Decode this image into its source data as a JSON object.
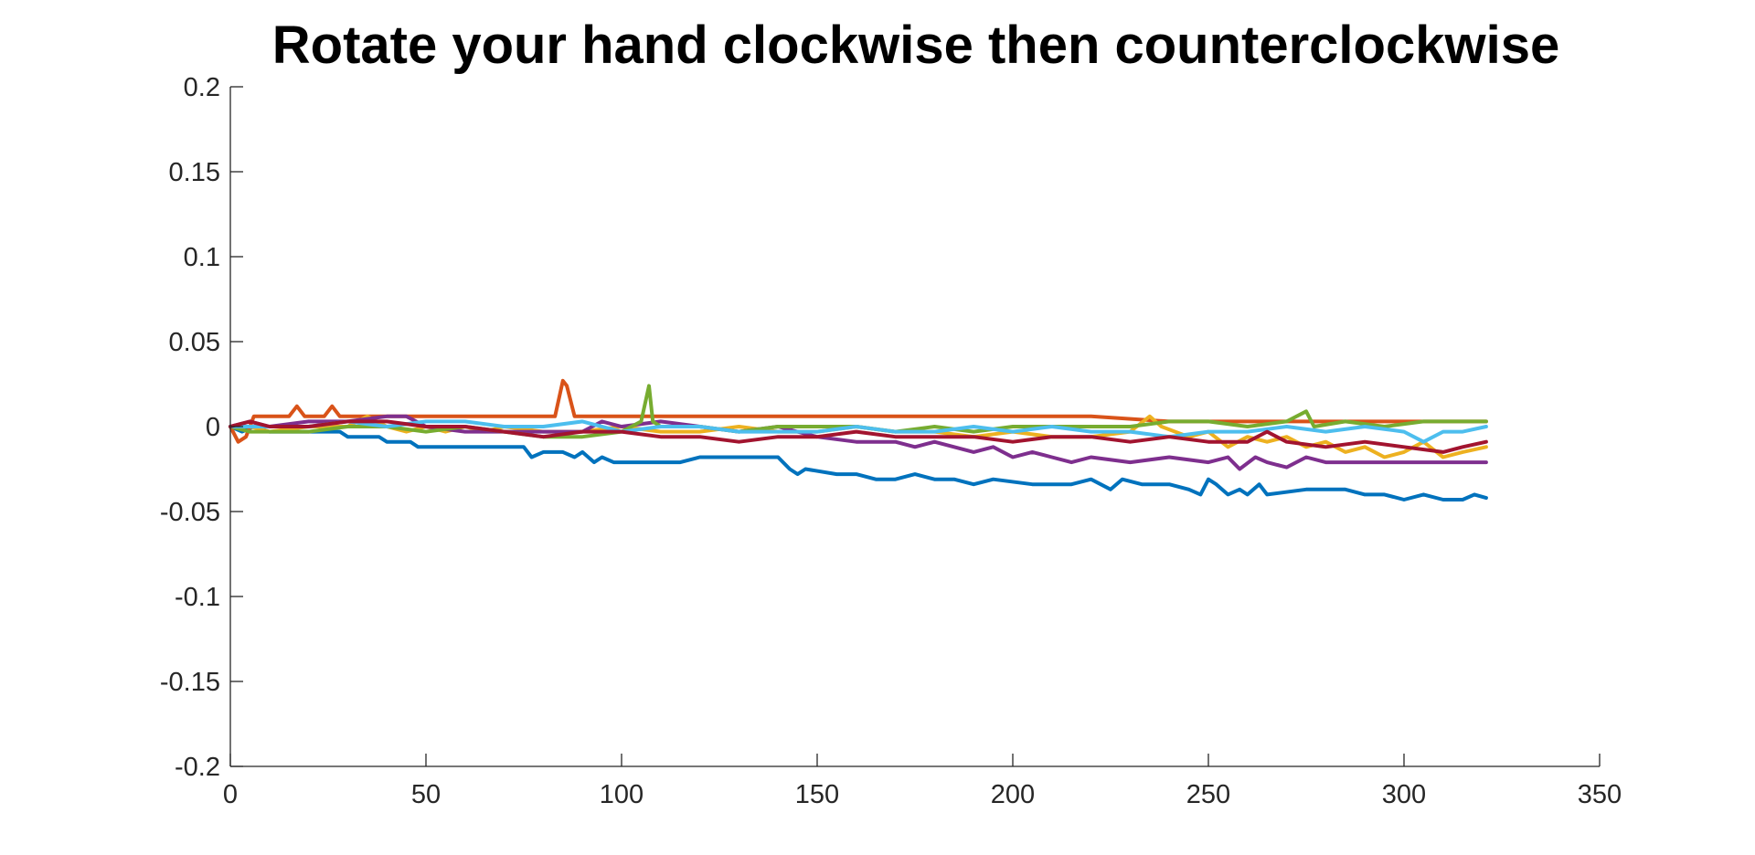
{
  "chart_data": {
    "type": "line",
    "title": "Rotate your hand clockwise then counterclockwise",
    "xlabel": "",
    "ylabel": "",
    "xlim": [
      0,
      350
    ],
    "ylim": [
      -0.2,
      0.2
    ],
    "x_ticks": [
      0,
      50,
      100,
      150,
      200,
      250,
      300,
      350
    ],
    "x_tick_labels": [
      "0",
      "50",
      "100",
      "150",
      "200",
      "250",
      "300",
      "350"
    ],
    "y_ticks": [
      0.2,
      0.15,
      0.1,
      0.05,
      0,
      -0.05,
      -0.1,
      -0.15,
      -0.2
    ],
    "y_tick_labels": [
      "0.2",
      "0.15",
      "0.1",
      "0.05",
      "0",
      "-0.05",
      "-0.1",
      "-0.15",
      "-0.2"
    ],
    "grid": false,
    "legend": "none",
    "series": [
      {
        "color": "#0072BD",
        "points": [
          [
            0,
            0
          ],
          [
            3,
            -0.003
          ],
          [
            6,
            0
          ],
          [
            10,
            -0.003
          ],
          [
            20,
            -0.003
          ],
          [
            28,
            -0.003
          ],
          [
            30,
            -0.006
          ],
          [
            38,
            -0.006
          ],
          [
            40,
            -0.009
          ],
          [
            46,
            -0.009
          ],
          [
            48,
            -0.012
          ],
          [
            60,
            -0.012
          ],
          [
            70,
            -0.012
          ],
          [
            75,
            -0.012
          ],
          [
            77,
            -0.018
          ],
          [
            80,
            -0.015
          ],
          [
            85,
            -0.015
          ],
          [
            88,
            -0.018
          ],
          [
            90,
            -0.015
          ],
          [
            93,
            -0.021
          ],
          [
            95,
            -0.018
          ],
          [
            98,
            -0.021
          ],
          [
            108,
            -0.021
          ],
          [
            115,
            -0.021
          ],
          [
            120,
            -0.018
          ],
          [
            125,
            -0.018
          ],
          [
            130,
            -0.018
          ],
          [
            140,
            -0.018
          ],
          [
            143,
            -0.025
          ],
          [
            145,
            -0.028
          ],
          [
            147,
            -0.025
          ],
          [
            155,
            -0.028
          ],
          [
            160,
            -0.028
          ],
          [
            165,
            -0.031
          ],
          [
            170,
            -0.031
          ],
          [
            175,
            -0.028
          ],
          [
            180,
            -0.031
          ],
          [
            185,
            -0.031
          ],
          [
            190,
            -0.034
          ],
          [
            195,
            -0.031
          ],
          [
            205,
            -0.034
          ],
          [
            215,
            -0.034
          ],
          [
            220,
            -0.031
          ],
          [
            225,
            -0.037
          ],
          [
            228,
            -0.031
          ],
          [
            233,
            -0.034
          ],
          [
            240,
            -0.034
          ],
          [
            245,
            -0.037
          ],
          [
            248,
            -0.04
          ],
          [
            250,
            -0.031
          ],
          [
            252,
            -0.034
          ],
          [
            255,
            -0.04
          ],
          [
            258,
            -0.037
          ],
          [
            260,
            -0.04
          ],
          [
            263,
            -0.034
          ],
          [
            265,
            -0.04
          ],
          [
            275,
            -0.037
          ],
          [
            285,
            -0.037
          ],
          [
            290,
            -0.04
          ],
          [
            295,
            -0.04
          ],
          [
            300,
            -0.043
          ],
          [
            305,
            -0.04
          ],
          [
            310,
            -0.043
          ],
          [
            315,
            -0.043
          ],
          [
            318,
            -0.04
          ],
          [
            321,
            -0.042
          ]
        ]
      },
      {
        "color": "#D95319",
        "points": [
          [
            0,
            0
          ],
          [
            2,
            -0.009
          ],
          [
            4,
            -0.006
          ],
          [
            6,
            0.006
          ],
          [
            10,
            0.006
          ],
          [
            15,
            0.006
          ],
          [
            17,
            0.012
          ],
          [
            19,
            0.006
          ],
          [
            24,
            0.006
          ],
          [
            26,
            0.012
          ],
          [
            28,
            0.006
          ],
          [
            40,
            0.006
          ],
          [
            60,
            0.006
          ],
          [
            80,
            0.006
          ],
          [
            83,
            0.006
          ],
          [
            85,
            0.027
          ],
          [
            86,
            0.024
          ],
          [
            88,
            0.006
          ],
          [
            100,
            0.006
          ],
          [
            120,
            0.006
          ],
          [
            140,
            0.006
          ],
          [
            160,
            0.006
          ],
          [
            180,
            0.006
          ],
          [
            200,
            0.006
          ],
          [
            220,
            0.006
          ],
          [
            240,
            0.003
          ],
          [
            260,
            0.003
          ],
          [
            280,
            0.003
          ],
          [
            300,
            0.003
          ],
          [
            321,
            0.003
          ]
        ]
      },
      {
        "color": "#EDB120",
        "points": [
          [
            0,
            0
          ],
          [
            5,
            0
          ],
          [
            10,
            -0.003
          ],
          [
            20,
            0
          ],
          [
            30,
            0
          ],
          [
            35,
            0.006
          ],
          [
            40,
            0
          ],
          [
            45,
            -0.003
          ],
          [
            50,
            0
          ],
          [
            55,
            -0.003
          ],
          [
            60,
            0
          ],
          [
            65,
            -0.003
          ],
          [
            70,
            0
          ],
          [
            80,
            -0.003
          ],
          [
            90,
            -0.003
          ],
          [
            100,
            0
          ],
          [
            110,
            -0.003
          ],
          [
            120,
            -0.003
          ],
          [
            130,
            0
          ],
          [
            140,
            -0.003
          ],
          [
            150,
            -0.003
          ],
          [
            160,
            0
          ],
          [
            170,
            -0.003
          ],
          [
            180,
            -0.003
          ],
          [
            190,
            -0.006
          ],
          [
            200,
            -0.003
          ],
          [
            210,
            -0.006
          ],
          [
            220,
            -0.006
          ],
          [
            230,
            -0.003
          ],
          [
            235,
            0.006
          ],
          [
            238,
            0
          ],
          [
            245,
            -0.006
          ],
          [
            250,
            -0.003
          ],
          [
            255,
            -0.012
          ],
          [
            260,
            -0.006
          ],
          [
            265,
            -0.009
          ],
          [
            270,
            -0.006
          ],
          [
            275,
            -0.012
          ],
          [
            280,
            -0.009
          ],
          [
            285,
            -0.015
          ],
          [
            290,
            -0.012
          ],
          [
            295,
            -0.018
          ],
          [
            300,
            -0.015
          ],
          [
            305,
            -0.009
          ],
          [
            310,
            -0.018
          ],
          [
            315,
            -0.015
          ],
          [
            321,
            -0.012
          ]
        ]
      },
      {
        "color": "#7E2F8E",
        "points": [
          [
            0,
            0
          ],
          [
            5,
            0.003
          ],
          [
            10,
            0
          ],
          [
            20,
            0.003
          ],
          [
            30,
            0.003
          ],
          [
            40,
            0.006
          ],
          [
            45,
            0.006
          ],
          [
            50,
            0
          ],
          [
            60,
            -0.003
          ],
          [
            70,
            -0.003
          ],
          [
            80,
            -0.003
          ],
          [
            90,
            -0.003
          ],
          [
            95,
            0.003
          ],
          [
            100,
            0
          ],
          [
            110,
            0.003
          ],
          [
            120,
            0
          ],
          [
            130,
            -0.003
          ],
          [
            140,
            0
          ],
          [
            150,
            -0.006
          ],
          [
            160,
            -0.009
          ],
          [
            170,
            -0.009
          ],
          [
            175,
            -0.012
          ],
          [
            180,
            -0.009
          ],
          [
            185,
            -0.012
          ],
          [
            190,
            -0.015
          ],
          [
            195,
            -0.012
          ],
          [
            200,
            -0.018
          ],
          [
            205,
            -0.015
          ],
          [
            210,
            -0.018
          ],
          [
            215,
            -0.021
          ],
          [
            220,
            -0.018
          ],
          [
            230,
            -0.021
          ],
          [
            240,
            -0.018
          ],
          [
            250,
            -0.021
          ],
          [
            255,
            -0.018
          ],
          [
            258,
            -0.025
          ],
          [
            262,
            -0.018
          ],
          [
            265,
            -0.021
          ],
          [
            270,
            -0.024
          ],
          [
            275,
            -0.018
          ],
          [
            280,
            -0.021
          ],
          [
            290,
            -0.021
          ],
          [
            300,
            -0.021
          ],
          [
            310,
            -0.021
          ],
          [
            321,
            -0.021
          ]
        ]
      },
      {
        "color": "#77AC30",
        "points": [
          [
            0,
            0
          ],
          [
            5,
            -0.003
          ],
          [
            10,
            -0.003
          ],
          [
            20,
            -0.003
          ],
          [
            30,
            0
          ],
          [
            40,
            0
          ],
          [
            50,
            -0.003
          ],
          [
            60,
            0
          ],
          [
            70,
            -0.003
          ],
          [
            80,
            -0.006
          ],
          [
            90,
            -0.006
          ],
          [
            100,
            -0.003
          ],
          [
            105,
            0.003
          ],
          [
            107,
            0.024
          ],
          [
            108,
            0.003
          ],
          [
            110,
            0
          ],
          [
            120,
            0
          ],
          [
            130,
            -0.003
          ],
          [
            140,
            0
          ],
          [
            150,
            0
          ],
          [
            160,
            0
          ],
          [
            170,
            -0.003
          ],
          [
            180,
            0
          ],
          [
            190,
            -0.003
          ],
          [
            200,
            0
          ],
          [
            210,
            0
          ],
          [
            220,
            0
          ],
          [
            230,
            0
          ],
          [
            240,
            0.003
          ],
          [
            250,
            0.003
          ],
          [
            260,
            0
          ],
          [
            270,
            0.003
          ],
          [
            275,
            0.009
          ],
          [
            277,
            0
          ],
          [
            285,
            0.003
          ],
          [
            295,
            0
          ],
          [
            305,
            0.003
          ],
          [
            315,
            0.003
          ],
          [
            321,
            0.003
          ]
        ]
      },
      {
        "color": "#4DBEEE",
        "points": [
          [
            0,
            0
          ],
          [
            5,
            0
          ],
          [
            10,
            0
          ],
          [
            20,
            0
          ],
          [
            30,
            0.003
          ],
          [
            40,
            0
          ],
          [
            50,
            0.003
          ],
          [
            60,
            0.003
          ],
          [
            70,
            0
          ],
          [
            80,
            0
          ],
          [
            90,
            0.003
          ],
          [
            100,
            -0.003
          ],
          [
            110,
            0
          ],
          [
            120,
            0
          ],
          [
            130,
            -0.003
          ],
          [
            140,
            -0.003
          ],
          [
            150,
            -0.003
          ],
          [
            160,
            0
          ],
          [
            170,
            -0.003
          ],
          [
            180,
            -0.003
          ],
          [
            190,
            0
          ],
          [
            200,
            -0.003
          ],
          [
            210,
            0
          ],
          [
            220,
            -0.003
          ],
          [
            230,
            -0.003
          ],
          [
            240,
            -0.006
          ],
          [
            250,
            -0.003
          ],
          [
            260,
            -0.003
          ],
          [
            270,
            0
          ],
          [
            280,
            -0.003
          ],
          [
            290,
            0
          ],
          [
            300,
            -0.003
          ],
          [
            305,
            -0.009
          ],
          [
            310,
            -0.003
          ],
          [
            315,
            -0.003
          ],
          [
            321,
            0
          ]
        ]
      },
      {
        "color": "#A2142F",
        "points": [
          [
            0,
            0
          ],
          [
            5,
            0.003
          ],
          [
            10,
            0
          ],
          [
            20,
            0
          ],
          [
            30,
            0.003
          ],
          [
            40,
            0.003
          ],
          [
            50,
            0
          ],
          [
            60,
            0
          ],
          [
            70,
            -0.003
          ],
          [
            80,
            -0.006
          ],
          [
            90,
            -0.003
          ],
          [
            100,
            -0.003
          ],
          [
            110,
            -0.006
          ],
          [
            120,
            -0.006
          ],
          [
            130,
            -0.009
          ],
          [
            140,
            -0.006
          ],
          [
            150,
            -0.006
          ],
          [
            160,
            -0.003
          ],
          [
            170,
            -0.006
          ],
          [
            180,
            -0.006
          ],
          [
            190,
            -0.006
          ],
          [
            200,
            -0.009
          ],
          [
            210,
            -0.006
          ],
          [
            220,
            -0.006
          ],
          [
            230,
            -0.009
          ],
          [
            240,
            -0.006
          ],
          [
            250,
            -0.009
          ],
          [
            260,
            -0.009
          ],
          [
            265,
            -0.003
          ],
          [
            270,
            -0.009
          ],
          [
            280,
            -0.012
          ],
          [
            290,
            -0.009
          ],
          [
            300,
            -0.012
          ],
          [
            310,
            -0.015
          ],
          [
            315,
            -0.012
          ],
          [
            321,
            -0.009
          ]
        ]
      }
    ]
  }
}
